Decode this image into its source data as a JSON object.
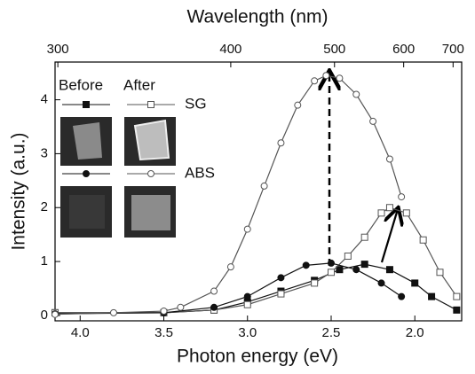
{
  "chart_data": {
    "type": "line",
    "xlabel": "Photon energy (eV)",
    "ylabel": "Intensity (a.u.)",
    "x2label": "Wavelength (nm)",
    "xlim": [
      4.15,
      1.72
    ],
    "ylim": [
      -0.1,
      4.7
    ],
    "xticks": [
      {
        "value": 4,
        "label": "4.0"
      },
      {
        "value": 3.5,
        "label": "3.5"
      },
      {
        "value": 3,
        "label": "3.0"
      },
      {
        "value": 2.5,
        "label": "2.5"
      },
      {
        "value": 2,
        "label": "2.0"
      }
    ],
    "yticks": [
      0,
      1,
      2,
      3,
      4
    ],
    "x2ticks": [
      300,
      400,
      500,
      600,
      700
    ],
    "legend": {
      "columns": [
        "Before",
        "After"
      ],
      "rows": [
        "SG",
        "ABS"
      ]
    },
    "series": [
      {
        "marker": "square",
        "filled": true,
        "color": "#111111",
        "x": [
          4.15,
          3.5,
          3.2,
          3.0,
          2.8,
          2.6,
          2.45,
          2.3,
          2.15,
          2.0,
          1.9,
          1.75
        ],
        "values": [
          0.05,
          0.05,
          0.1,
          0.25,
          0.45,
          0.65,
          0.85,
          0.95,
          0.85,
          0.6,
          0.35,
          0.1
        ]
      },
      {
        "marker": "square",
        "filled": false,
        "color": "#555555",
        "x": [
          4.15,
          3.5,
          3.2,
          3.0,
          2.8,
          2.6,
          2.5,
          2.4,
          2.3,
          2.2,
          2.15,
          2.05,
          1.95,
          1.85,
          1.75
        ],
        "values": [
          0.05,
          0.05,
          0.1,
          0.2,
          0.4,
          0.6,
          0.8,
          1.1,
          1.45,
          1.9,
          2.0,
          1.9,
          1.4,
          0.8,
          0.35
        ]
      },
      {
        "marker": "circle",
        "filled": true,
        "color": "#111111",
        "x": [
          4.15,
          3.5,
          3.2,
          3.0,
          2.8,
          2.65,
          2.5,
          2.35,
          2.2,
          2.08
        ],
        "values": [
          0.03,
          0.05,
          0.15,
          0.35,
          0.7,
          0.93,
          0.97,
          0.85,
          0.6,
          0.35
        ]
      },
      {
        "marker": "circle",
        "filled": false,
        "color": "#555555",
        "x": [
          4.15,
          3.8,
          3.5,
          3.4,
          3.2,
          3.1,
          3.0,
          2.9,
          2.8,
          2.7,
          2.6,
          2.53,
          2.45,
          2.35,
          2.25,
          2.15,
          2.08
        ],
        "values": [
          0.02,
          0.05,
          0.08,
          0.15,
          0.45,
          0.9,
          1.6,
          2.4,
          3.2,
          3.9,
          4.35,
          4.45,
          4.4,
          4.1,
          3.6,
          2.9,
          2.2
        ]
      }
    ]
  }
}
